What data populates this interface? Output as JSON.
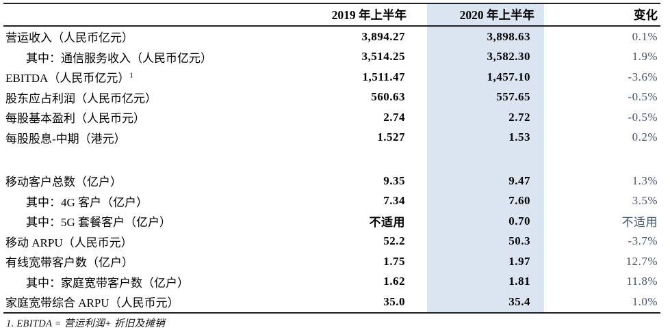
{
  "colors": {
    "highlight_column": "#dbe5f1",
    "rule_line": "#1f1f1f",
    "change_text": "#44546a"
  },
  "table": {
    "headers": {
      "label": "",
      "h2019": "2019 年上半年",
      "h2020": "2020 年上半年",
      "change": "变化"
    },
    "rows": [
      {
        "label": "营运收入（人民币亿元）",
        "y2019": "3,894.27",
        "y2020": "3,898.63",
        "change": "0.1%"
      },
      {
        "label": "其中：通信服务收入（人民币亿元）",
        "y2019": "3,514.25",
        "y2020": "3,582.30",
        "change": "1.9%"
      },
      {
        "label": "EBITDA（人民币亿元）",
        "sup": "1",
        "y2019": "1,511.47",
        "y2020": "1,457.10",
        "change": "-3.6%"
      },
      {
        "label": "股东应占利润（人民币亿元）",
        "y2019": "560.63",
        "y2020": "557.65",
        "change": "-0.5%"
      },
      {
        "label": "每股基本盈利（人民币元）",
        "y2019": "2.74",
        "y2020": "2.72",
        "change": "-0.5%"
      },
      {
        "label": "每股股息-中期（港元）",
        "y2019": "1.527",
        "y2020": "1.53",
        "change": "0.2%"
      },
      {
        "label": "",
        "y2019": "",
        "y2020": "",
        "change": ""
      },
      {
        "label": "移动客户总数（亿户）",
        "y2019": "9.35",
        "y2020": "9.47",
        "change": "1.3%"
      },
      {
        "label": "其中：4G 客户（亿户）",
        "y2019": "7.34",
        "y2020": "7.60",
        "change": "3.5%"
      },
      {
        "label": "其中：5G 套餐客户（亿户）",
        "y2019": "不适用",
        "y2020": "0.70",
        "change": "不适用"
      },
      {
        "label": "移动 ARPU（人民币元）",
        "y2019": "52.2",
        "y2020": "50.3",
        "change": "-3.7%"
      },
      {
        "label": "有线宽带客户数（亿户）",
        "y2019": "1.75",
        "y2020": "1.97",
        "change": "12.7%"
      },
      {
        "label": "其中：家庭宽带客户数（亿户）",
        "y2019": "1.62",
        "y2020": "1.81",
        "change": "11.8%"
      },
      {
        "label": "家庭宽带综合 ARPU（人民币元）",
        "y2019": "35.0",
        "y2020": "35.4",
        "change": "1.0%"
      }
    ],
    "footnote": "1.  EBITDA = 营运利润+ 折旧及摊销"
  }
}
